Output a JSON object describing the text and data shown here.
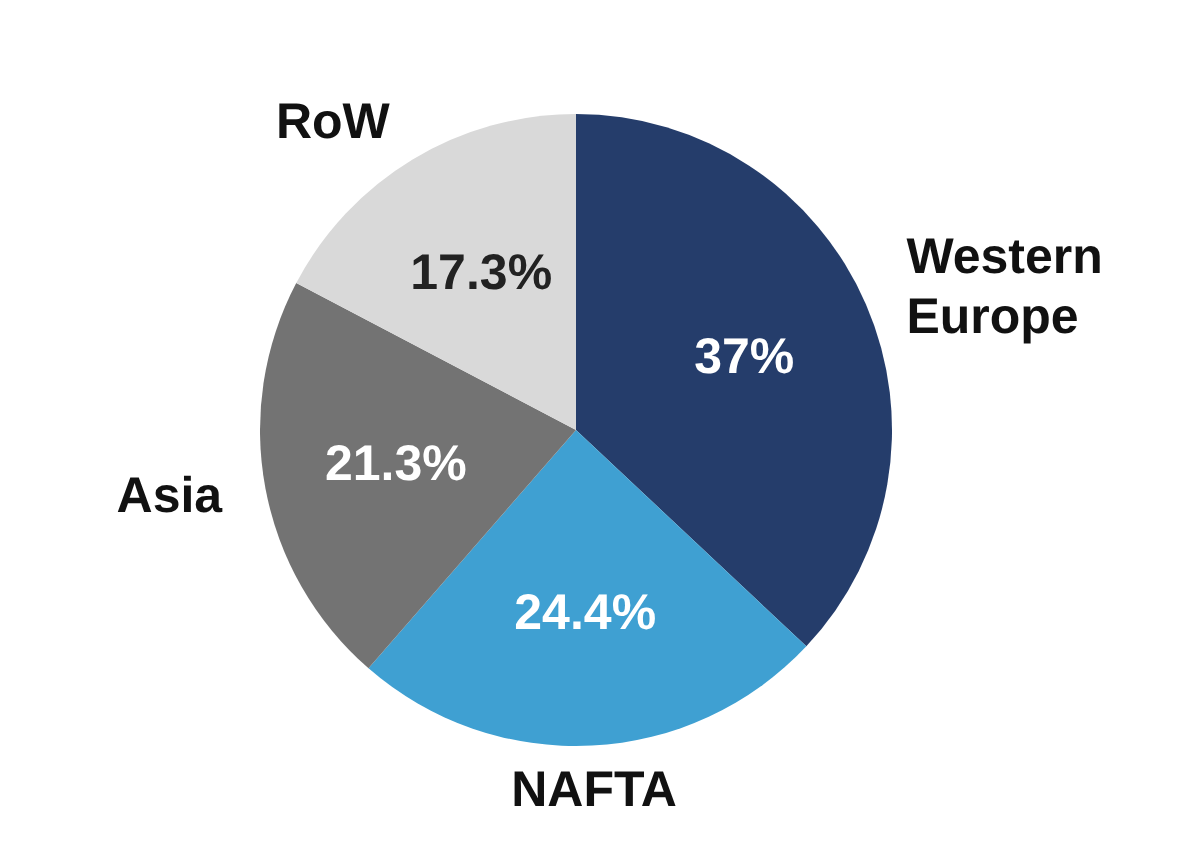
{
  "chart_data": {
    "type": "pie",
    "categories": [
      "Western Europe",
      "NAFTA",
      "Asia",
      "RoW"
    ],
    "values": [
      37,
      24.4,
      21.3,
      17.3
    ],
    "value_labels": [
      "37%",
      "24.4%",
      "21.3%",
      "17.3%"
    ],
    "colors": [
      "#253d6b",
      "#3fa0d2",
      "#737373",
      "#d9d9d9"
    ]
  }
}
